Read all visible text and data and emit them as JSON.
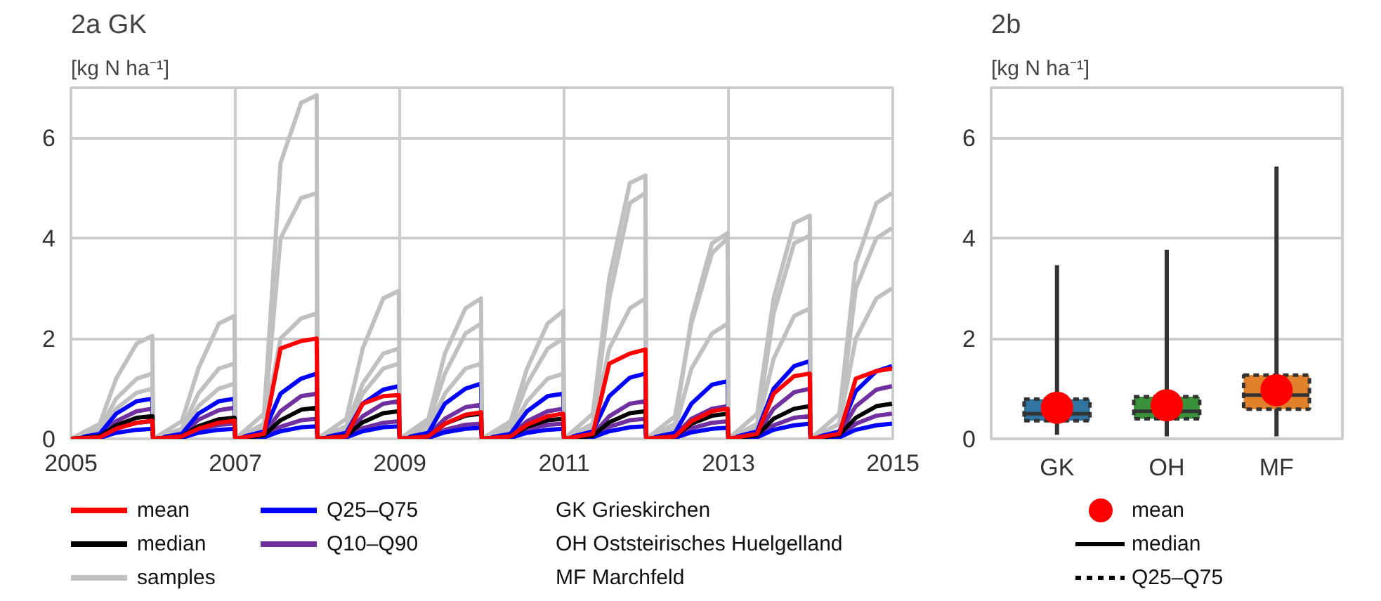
{
  "chart_data": [
    {
      "type": "line",
      "title": "2a GK",
      "ylabel": "[kg N ha⁻¹]",
      "xlim": [
        2005,
        2015
      ],
      "xticks": [
        2005,
        2007,
        2009,
        2011,
        2013,
        2015
      ],
      "ylim": [
        0,
        7
      ],
      "yticks": [
        0,
        2,
        4,
        6
      ],
      "grid": true,
      "legend": "bottom",
      "marker": "none",
      "line_style": "solid",
      "x": [
        2005,
        2005.35,
        2005.55,
        2005.8,
        2005.99,
        2006,
        2006.35,
        2006.55,
        2006.8,
        2006.99,
        2007,
        2007.35,
        2007.55,
        2007.8,
        2007.99,
        2008,
        2008.35,
        2008.55,
        2008.8,
        2008.99,
        2009,
        2009.35,
        2009.55,
        2009.8,
        2009.99,
        2010,
        2010.35,
        2010.55,
        2010.8,
        2010.99,
        2011,
        2011.35,
        2011.55,
        2011.8,
        2011.99,
        2012,
        2012.35,
        2012.55,
        2012.8,
        2012.99,
        2013,
        2013.35,
        2013.55,
        2013.8,
        2013.99,
        2014,
        2014.35,
        2014.55,
        2014.8,
        2014.99
      ],
      "series": [
        {
          "name": "mean",
          "color": "#ff0000",
          "values": [
            0,
            0.03,
            0.2,
            0.32,
            0.36,
            0,
            0.05,
            0.2,
            0.32,
            0.36,
            0,
            0.1,
            1.8,
            1.95,
            2.0,
            0,
            0.05,
            0.7,
            0.85,
            0.87,
            0,
            0.05,
            0.3,
            0.48,
            0.53,
            0,
            0.05,
            0.28,
            0.45,
            0.5,
            0,
            0.1,
            1.5,
            1.7,
            1.78,
            0,
            0.05,
            0.35,
            0.55,
            0.6,
            0,
            0.1,
            0.9,
            1.25,
            1.3,
            0,
            0.1,
            1.2,
            1.35,
            1.4
          ]
        },
        {
          "name": "median",
          "color": "#000000",
          "values": [
            0,
            0.05,
            0.27,
            0.42,
            0.45,
            0,
            0.05,
            0.25,
            0.39,
            0.42,
            0,
            0.07,
            0.37,
            0.58,
            0.62,
            0,
            0.06,
            0.33,
            0.51,
            0.55,
            0,
            0.05,
            0.3,
            0.46,
            0.5,
            0,
            0.05,
            0.24,
            0.37,
            0.4,
            0,
            0.06,
            0.33,
            0.51,
            0.55,
            0,
            0.05,
            0.3,
            0.46,
            0.5,
            0,
            0.07,
            0.4,
            0.6,
            0.65,
            0,
            0.08,
            0.42,
            0.65,
            0.7
          ]
        },
        {
          "name": "samples",
          "color": "#c0c0c0",
          "values": [
            0,
            0.3,
            1.2,
            1.9,
            2.05,
            0,
            0.35,
            1.4,
            2.3,
            2.45,
            0,
            0.5,
            5.5,
            6.7,
            6.85,
            0,
            0.4,
            1.8,
            2.8,
            2.95,
            0,
            0.4,
            1.7,
            2.6,
            2.8,
            0,
            0.35,
            1.4,
            2.3,
            2.55,
            0,
            0.5,
            3.2,
            5.1,
            5.25,
            0,
            0.45,
            2.3,
            3.7,
            4.0,
            0,
            0.5,
            2.8,
            4.3,
            4.45,
            0,
            0.5,
            3.5,
            4.7,
            4.9
          ]
        },
        {
          "name": "Q25–Q75",
          "color": "#0000ff",
          "values": [
            0,
            0.1,
            0.5,
            0.75,
            0.8,
            0,
            0.1,
            0.5,
            0.75,
            0.8,
            0,
            0.15,
            0.9,
            1.2,
            1.3,
            0,
            0.12,
            0.7,
            0.98,
            1.05,
            0,
            0.12,
            0.7,
            1.0,
            1.1,
            0,
            0.1,
            0.55,
            0.85,
            0.9,
            0,
            0.15,
            0.85,
            1.22,
            1.3,
            0,
            0.12,
            0.7,
            1.08,
            1.15,
            0,
            0.15,
            1.0,
            1.45,
            1.55,
            0,
            0.15,
            0.95,
            1.35,
            1.45
          ]
        },
        {
          "name": "Q10–Q90",
          "color": "#7030a0",
          "values": [
            0,
            0.07,
            0.35,
            0.55,
            0.6,
            0,
            0.07,
            0.38,
            0.57,
            0.62,
            0,
            0.1,
            0.55,
            0.85,
            0.9,
            0,
            0.08,
            0.45,
            0.7,
            0.75,
            0,
            0.08,
            0.4,
            0.63,
            0.68,
            0,
            0.07,
            0.35,
            0.55,
            0.6,
            0,
            0.08,
            0.45,
            0.7,
            0.75,
            0,
            0.07,
            0.4,
            0.6,
            0.65,
            0,
            0.1,
            0.6,
            0.93,
            1.0,
            0,
            0.1,
            0.65,
            0.98,
            1.05
          ]
        },
        {
          "color": "#c0c0c0",
          "values": [
            0,
            0.2,
            0.8,
            1.2,
            1.3,
            0,
            0.2,
            0.9,
            1.4,
            1.5,
            0,
            0.3,
            4.0,
            4.8,
            4.9,
            0,
            0.25,
            1.1,
            1.7,
            1.8,
            0,
            0.3,
            1.3,
            2.1,
            2.3,
            0,
            0.25,
            1.1,
            1.8,
            2.0,
            0,
            0.3,
            2.8,
            4.7,
            4.9,
            0,
            0.3,
            2.4,
            3.9,
            4.1,
            0,
            0.3,
            2.5,
            3.9,
            4.05,
            0,
            0.3,
            3.0,
            4.0,
            4.2
          ]
        },
        {
          "color": "#c0c0c0",
          "values": [
            0,
            0.15,
            0.6,
            0.92,
            1.0,
            0,
            0.15,
            0.65,
            1.0,
            1.1,
            0,
            0.25,
            2.0,
            2.4,
            2.5,
            0,
            0.2,
            0.9,
            1.4,
            1.5,
            0,
            0.2,
            0.9,
            1.4,
            1.5,
            0,
            0.15,
            0.75,
            1.2,
            1.3,
            0,
            0.25,
            1.8,
            2.6,
            2.8,
            0,
            0.2,
            1.4,
            2.1,
            2.3,
            0,
            0.25,
            1.6,
            2.45,
            2.6,
            0,
            0.3,
            2.0,
            2.8,
            3.0
          ]
        },
        {
          "color": "#0000ff",
          "values": [
            0,
            0.02,
            0.12,
            0.18,
            0.2,
            0,
            0.02,
            0.12,
            0.18,
            0.2,
            0,
            0.03,
            0.15,
            0.23,
            0.25,
            0,
            0.03,
            0.15,
            0.23,
            0.25,
            0,
            0.02,
            0.13,
            0.2,
            0.22,
            0,
            0.02,
            0.12,
            0.18,
            0.2,
            0,
            0.03,
            0.15,
            0.23,
            0.25,
            0,
            0.02,
            0.13,
            0.2,
            0.22,
            0,
            0.03,
            0.18,
            0.27,
            0.3,
            0,
            0.03,
            0.18,
            0.27,
            0.3
          ]
        },
        {
          "color": "#7030a0",
          "values": [
            0,
            0.04,
            0.21,
            0.32,
            0.35,
            0,
            0.03,
            0.18,
            0.28,
            0.3,
            0,
            0.04,
            0.24,
            0.37,
            0.4,
            0,
            0.04,
            0.21,
            0.32,
            0.35,
            0,
            0.03,
            0.18,
            0.28,
            0.3,
            0,
            0.03,
            0.18,
            0.28,
            0.3,
            0,
            0.04,
            0.24,
            0.37,
            0.4,
            0,
            0.04,
            0.21,
            0.32,
            0.35,
            0,
            0.05,
            0.27,
            0.42,
            0.45,
            0,
            0.05,
            0.3,
            0.46,
            0.5
          ]
        }
      ],
      "annotations": [
        "GK Grieskirchen",
        "OH Oststeirisches Huelgelland",
        "MF Marchfeld"
      ]
    },
    {
      "type": "box",
      "title": "2b",
      "ylabel": "[kg N ha⁻¹]",
      "categories": [
        "GK",
        "OH",
        "MF"
      ],
      "ylim": [
        0,
        7
      ],
      "yticks": [
        0,
        2,
        4,
        6
      ],
      "grid": "y",
      "legend": "bottom",
      "colors": [
        "#3274a1",
        "#3a923a",
        "#e1812c"
      ],
      "boxes": [
        {
          "low": 0.08,
          "q1": 0.36,
          "median": 0.5,
          "q3": 0.79,
          "high": 3.46
        },
        {
          "low": 0.05,
          "q1": 0.4,
          "median": 0.55,
          "q3": 0.84,
          "high": 3.77
        },
        {
          "low": 0.05,
          "q1": 0.59,
          "median": 0.87,
          "q3": 1.27,
          "high": 5.43
        }
      ],
      "series": [
        {
          "name": "mean",
          "type": "scatter",
          "color": "#ff0000",
          "x": [
            "GK",
            "OH",
            "MF"
          ],
          "values": [
            0.62,
            0.67,
            0.97
          ]
        }
      ],
      "annotations": [
        "median",
        "Q25–Q75"
      ]
    }
  ]
}
